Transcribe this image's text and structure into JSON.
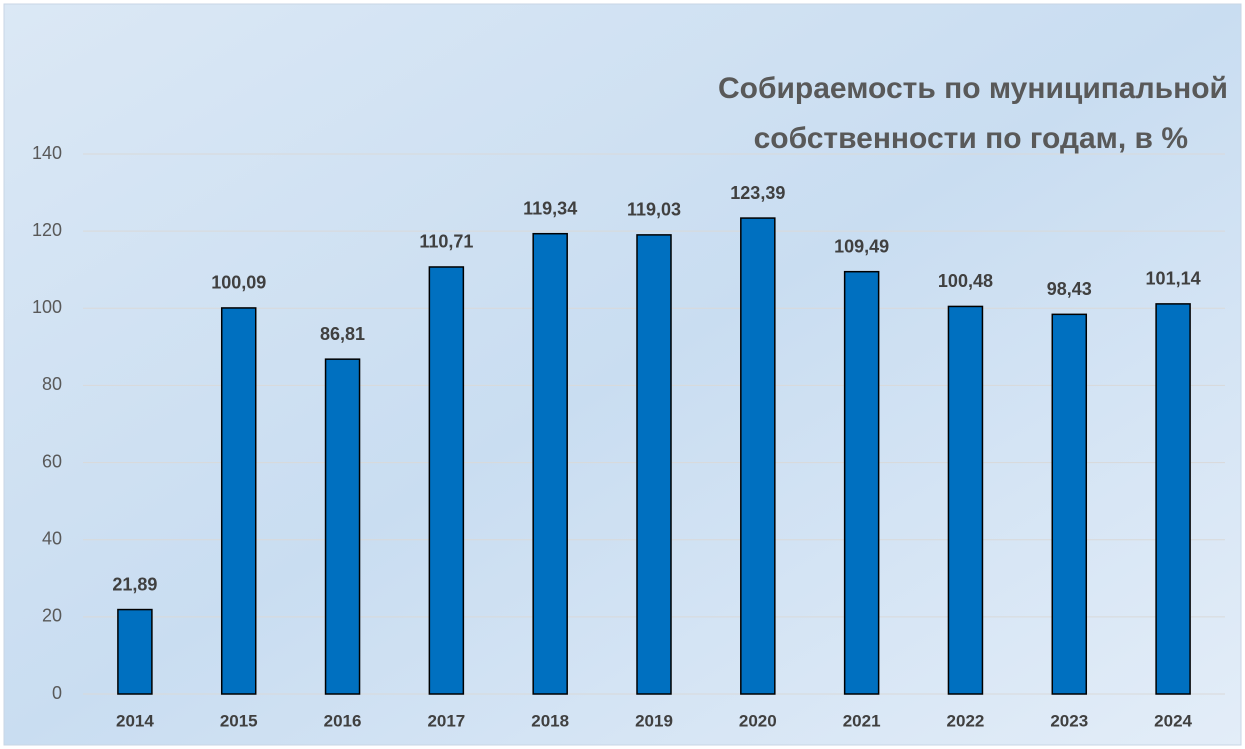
{
  "chart_data": {
    "type": "bar",
    "title": [
      "Собираемость по муниципальной",
      "собственности по годам, в %"
    ],
    "categories": [
      "2014",
      "2015",
      "2016",
      "2017",
      "2018",
      "2019",
      "2020",
      "2021",
      "2022",
      "2023",
      "2024"
    ],
    "values": [
      21.89,
      100.09,
      86.81,
      110.71,
      119.34,
      119.03,
      123.39,
      109.49,
      100.48,
      98.43,
      101.14
    ],
    "value_labels": [
      "21,89",
      "100,09",
      "86,81",
      "110,71",
      "119,34",
      "119,03",
      "123,39",
      "109,49",
      "100,48",
      "98,43",
      "101,14"
    ],
    "color": "#0070c0",
    "ylim": [
      0,
      140
    ],
    "yticks": [
      0,
      20,
      40,
      60,
      80,
      100,
      120,
      140
    ],
    "grid": true
  }
}
